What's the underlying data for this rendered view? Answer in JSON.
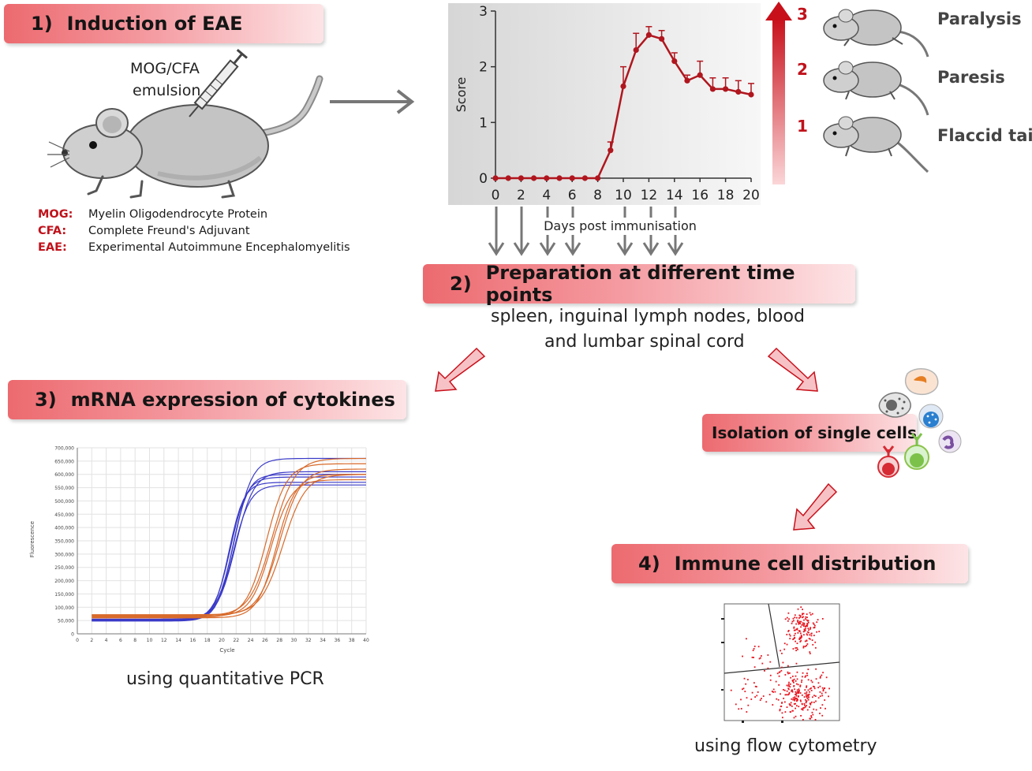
{
  "step1": {
    "number": "1)",
    "title": "Induction of EAE"
  },
  "injection": {
    "line1": "MOG/CFA",
    "line2": "emulsion"
  },
  "abbreviations": [
    {
      "key": "MOG:",
      "value": "Myelin Oligodendrocyte Protein"
    },
    {
      "key": "CFA:",
      "value": "Complete Freund's Adjuvant"
    },
    {
      "key": "EAE:",
      "value": "Experimental Autoimmune  Encephalomyelitis"
    }
  ],
  "chart_data": [
    {
      "type": "line",
      "xlabel": "Days post immunisation",
      "ylabel": "Score",
      "xlim": [
        0,
        20
      ],
      "ylim": [
        0,
        3
      ],
      "xticks": [
        "0",
        "2",
        "4",
        "6",
        "8",
        "10",
        "12",
        "14",
        "16",
        "18",
        "20"
      ],
      "yticks": [
        "0",
        "1",
        "2",
        "3"
      ],
      "color": "#b0161e",
      "x": [
        0,
        1,
        2,
        3,
        4,
        5,
        6,
        7,
        8,
        9,
        10,
        11,
        12,
        13,
        14,
        15,
        16,
        17,
        18,
        19,
        20
      ],
      "y": [
        0,
        0,
        0,
        0,
        0,
        0,
        0,
        0,
        0,
        0.5,
        1.65,
        2.3,
        2.57,
        2.5,
        2.1,
        1.75,
        1.85,
        1.6,
        1.6,
        1.55,
        1.5
      ],
      "err": [
        0,
        0,
        0,
        0,
        0,
        0,
        0,
        0,
        0,
        0.15,
        0.35,
        0.3,
        0.15,
        0.15,
        0.15,
        0.1,
        0.25,
        0.2,
        0.2,
        0.2,
        0.2
      ]
    },
    {
      "type": "line",
      "xlabel": "Cycle",
      "ylabel": "Fluorescence",
      "xlim": [
        0,
        40
      ],
      "ylim": [
        0,
        700000
      ],
      "yticks": [
        "0",
        "50,000",
        "100,000",
        "150,000",
        "200,000",
        "250,000",
        "300,000",
        "350,000",
        "400,000",
        "450,000",
        "500,000",
        "550,000",
        "600,000",
        "650,000",
        "700,000"
      ],
      "xticks": [
        "0",
        "2",
        "4",
        "6",
        "8",
        "10",
        "12",
        "14",
        "16",
        "18",
        "20",
        "22",
        "24",
        "26",
        "28",
        "30",
        "32",
        "34",
        "36",
        "38",
        "40"
      ],
      "series": [
        {
          "color": "#3a3ac8",
          "baseline": 55000,
          "plateau": 660000,
          "midpoint": 21.8,
          "slope": 1.15
        },
        {
          "color": "#3a3ac8",
          "baseline": 50000,
          "plateau": 600000,
          "midpoint": 21.5,
          "slope": 1.3
        },
        {
          "color": "#3a3ac8",
          "baseline": 52000,
          "plateau": 590000,
          "midpoint": 21.2,
          "slope": 1.25
        },
        {
          "color": "#3a3ac8",
          "baseline": 48000,
          "plateau": 570000,
          "midpoint": 21.0,
          "slope": 1.35
        },
        {
          "color": "#3a3ac8",
          "baseline": 55000,
          "plateau": 560000,
          "midpoint": 21.6,
          "slope": 1.2
        },
        {
          "color": "#3a3ac8",
          "baseline": 50000,
          "plateau": 610000,
          "midpoint": 21.9,
          "slope": 1.1
        },
        {
          "color": "#d86a2a",
          "baseline": 68000,
          "plateau": 660000,
          "midpoint": 27.0,
          "slope": 0.9
        },
        {
          "color": "#d86a2a",
          "baseline": 62000,
          "plateau": 640000,
          "midpoint": 26.2,
          "slope": 1.0
        },
        {
          "color": "#d86a2a",
          "baseline": 70000,
          "plateau": 620000,
          "midpoint": 28.0,
          "slope": 0.95
        },
        {
          "color": "#d86a2a",
          "baseline": 60000,
          "plateau": 600000,
          "midpoint": 27.6,
          "slope": 1.05
        },
        {
          "color": "#d86a2a",
          "baseline": 65000,
          "plateau": 580000,
          "midpoint": 26.8,
          "slope": 1.0
        },
        {
          "color": "#d86a2a",
          "baseline": 72000,
          "plateau": 600000,
          "midpoint": 28.5,
          "slope": 0.9
        }
      ]
    }
  ],
  "severity": [
    {
      "score": "3",
      "label": "Paralysis"
    },
    {
      "score": "2",
      "label": "Paresis"
    },
    {
      "score": "1",
      "label": "Flaccid tail"
    }
  ],
  "step2": {
    "number": "2)",
    "title": "Preparation  at different time points"
  },
  "tissues": {
    "line1": "spleen, inguinal lymph nodes, blood",
    "line2": "and lumbar spinal cord"
  },
  "step3": {
    "number": "3)",
    "title": "mRNA expression  of cytokines"
  },
  "pcr_caption": "using quantitative PCR",
  "isolation": {
    "title": "Isolation of single cells"
  },
  "step4": {
    "number": "4)",
    "title": "Immune cell distribution"
  },
  "flow_caption": "using flow cytometry"
}
